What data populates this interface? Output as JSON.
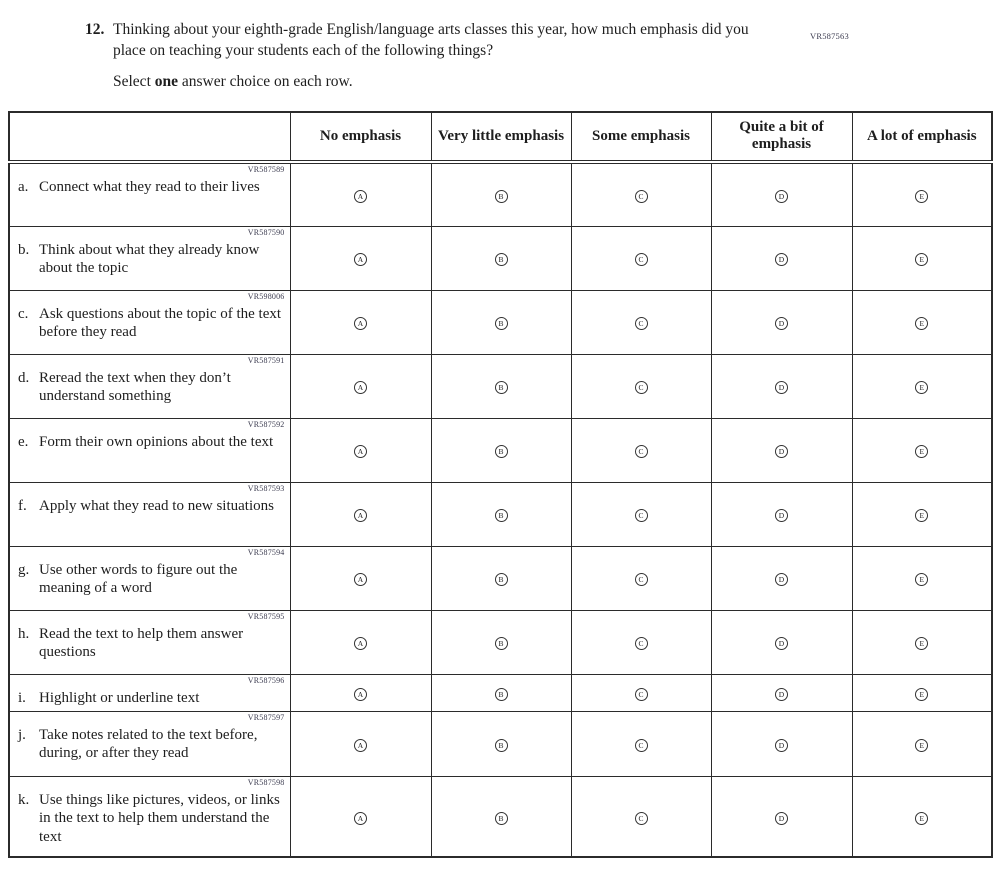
{
  "page_code": "VR587563",
  "question": {
    "number": "12.",
    "text": "Thinking about your eighth-grade English/language arts classes this year, how much emphasis did you place on teaching your students each of the following things?",
    "instruction_prefix": "Select ",
    "instruction_bold": "one",
    "instruction_suffix": " answer choice on each row."
  },
  "table": {
    "columns": [
      "No emphasis",
      "Very little emphasis",
      "Some emphasis",
      "Quite a bit of emphasis",
      "A lot of emphasis"
    ],
    "option_letters": [
      "A",
      "B",
      "C",
      "D",
      "E"
    ],
    "rows": [
      {
        "letter": "a.",
        "code": "VR587589",
        "label": "Connect what they read to their lives"
      },
      {
        "letter": "b.",
        "code": "VR587590",
        "label": "Think about what they already know about the topic"
      },
      {
        "letter": "c.",
        "code": "VR598006",
        "label": "Ask questions about the topic of the text before they read"
      },
      {
        "letter": "d.",
        "code": "VR587591",
        "label": "Reread the text when they don’t understand something"
      },
      {
        "letter": "e.",
        "code": "VR587592",
        "label": "Form their own opinions about the text"
      },
      {
        "letter": "f.",
        "code": "VR587593",
        "label": "Apply what they read to new situations"
      },
      {
        "letter": "g.",
        "code": "VR587594",
        "label": "Use other words to figure out the meaning of a word"
      },
      {
        "letter": "h.",
        "code": "VR587595",
        "label": "Read the text to help them answer questions"
      },
      {
        "letter": "i.",
        "code": "VR587596",
        "label": "Highlight or underline text"
      },
      {
        "letter": "j.",
        "code": "VR587597",
        "label": "Take notes related to the text before, during, or after they read"
      },
      {
        "letter": "k.",
        "code": "VR587598",
        "label": "Use things like pictures, videos, or links in the text to help them understand the text"
      }
    ]
  },
  "colors": {
    "text": "#1e1e1e",
    "border": "#2b2b2b",
    "code": "#3c3c50"
  }
}
